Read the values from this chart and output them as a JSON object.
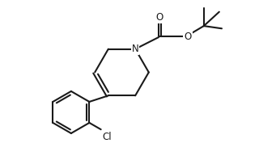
{
  "background_color": "#ffffff",
  "line_color": "#1a1a1a",
  "line_width": 1.5,
  "font_size": 8.5,
  "figsize": [
    3.2,
    1.98
  ],
  "dpi": 100,
  "xlim": [
    0,
    10
  ],
  "ylim": [
    0,
    6.2
  ]
}
